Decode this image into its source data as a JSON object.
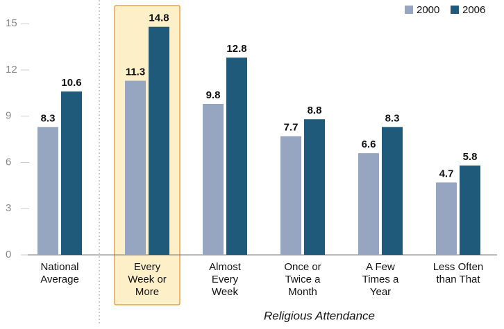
{
  "chart_data": {
    "type": "bar",
    "categories": [
      [
        "National",
        "Average"
      ],
      [
        "Every",
        "Week or",
        "More"
      ],
      [
        "Almost",
        "Every",
        "Week"
      ],
      [
        "Once or",
        "Twice a",
        "Month"
      ],
      [
        "A Few",
        "Times a",
        "Year"
      ],
      [
        "Less Often",
        "than That"
      ]
    ],
    "series": [
      {
        "name": "2000",
        "color": "#97a6c0",
        "values": [
          8.3,
          11.3,
          9.8,
          7.7,
          6.6,
          4.7
        ]
      },
      {
        "name": "2006",
        "color": "#1f5a7a",
        "values": [
          10.6,
          14.8,
          12.8,
          8.8,
          8.3,
          5.8
        ]
      }
    ],
    "xlabel": "Religious Attendance",
    "ylim": [
      0,
      16
    ],
    "yticks": [
      0,
      3,
      6,
      9,
      12,
      15
    ]
  }
}
